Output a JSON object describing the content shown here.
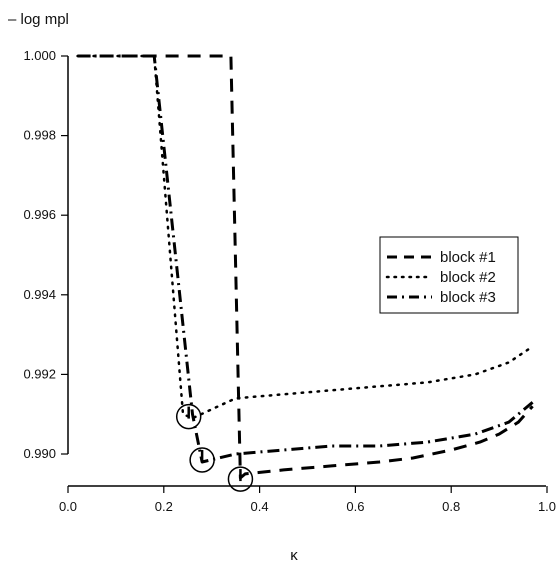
{
  "chart_data": {
    "type": "line",
    "ylabel": "– log mpl",
    "xlabel": "κ",
    "xlim": [
      0.0,
      1.0
    ],
    "ylim": [
      0.9888,
      1.0003
    ],
    "xticks": [
      0.0,
      0.2,
      0.4,
      0.6,
      0.8,
      1.0
    ],
    "xtick_labels": [
      "0.0",
      "0.2",
      "0.4",
      "0.6",
      "0.8",
      "1.0"
    ],
    "yticks": [
      0.99,
      0.992,
      0.994,
      0.996,
      0.998,
      1.0
    ],
    "ytick_labels": [
      "0.990",
      "0.992",
      "0.994",
      "0.996",
      "0.998",
      "1.000"
    ],
    "legend_position": "right",
    "series": [
      {
        "name": "block #1",
        "style": "dashed",
        "x": [
          0.02,
          0.34,
          0.36,
          0.37,
          0.45,
          0.55,
          0.65,
          0.72,
          0.8,
          0.86,
          0.9,
          0.94,
          0.97
        ],
        "y": [
          1.0,
          1.0,
          0.9894,
          0.9895,
          0.9896,
          0.9897,
          0.9898,
          0.9899,
          0.9901,
          0.9903,
          0.9905,
          0.9908,
          0.9912
        ]
      },
      {
        "name": "block #2",
        "style": "dotted",
        "x": [
          0.02,
          0.18,
          0.24,
          0.26,
          0.35,
          0.45,
          0.55,
          0.65,
          0.75,
          0.85,
          0.92,
          0.97
        ],
        "y": [
          1.0,
          1.0,
          0.991,
          0.9909,
          0.9914,
          0.9915,
          0.9916,
          0.9917,
          0.9918,
          0.992,
          0.9923,
          0.9927
        ]
      },
      {
        "name": "block #3",
        "style": "dashdot",
        "x": [
          0.02,
          0.18,
          0.26,
          0.28,
          0.35,
          0.45,
          0.55,
          0.65,
          0.75,
          0.85,
          0.92,
          0.97
        ],
        "y": [
          1.0,
          1.0,
          0.991,
          0.9898,
          0.99,
          0.9901,
          0.9902,
          0.9902,
          0.9903,
          0.9905,
          0.9908,
          0.9913
        ]
      }
    ],
    "markers": [
      {
        "x": 0.252,
        "y": 0.99094
      },
      {
        "x": 0.28,
        "y": 0.98985
      },
      {
        "x": 0.36,
        "y": 0.98937
      }
    ]
  }
}
